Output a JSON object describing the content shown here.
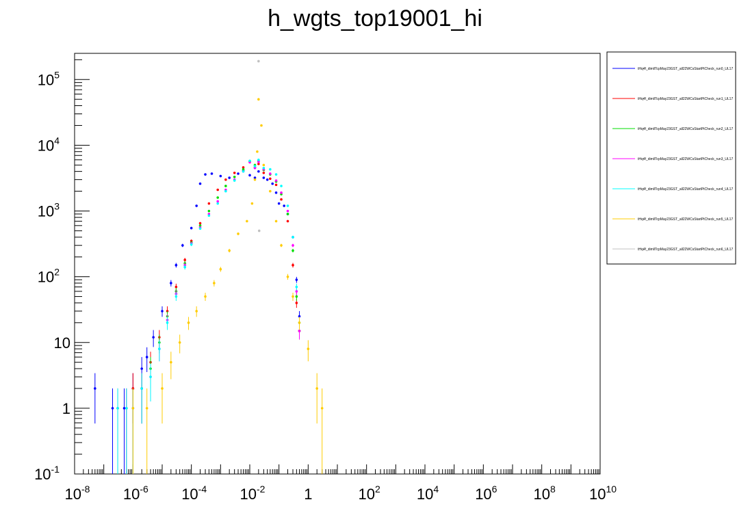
{
  "chart_data": {
    "type": "scatter",
    "title": "h_wgts_top19001_hi",
    "xlabel": "",
    "ylabel": "",
    "x_scale": "log",
    "y_scale": "log",
    "xlim": [
      1e-08,
      10000000000.0
    ],
    "ylim": [
      0.1,
      250000
    ],
    "grid": false,
    "legend_position": "top-right",
    "x_tick_labels": [
      {
        "value": 1e-08,
        "base": "10",
        "exp": "-8"
      },
      {
        "value": 1e-06,
        "base": "10",
        "exp": "-6"
      },
      {
        "value": 0.0001,
        "base": "10",
        "exp": "-4"
      },
      {
        "value": 0.01,
        "base": "10",
        "exp": "-2"
      },
      {
        "value": 1,
        "base": "1",
        "exp": ""
      },
      {
        "value": 100,
        "base": "10",
        "exp": "2"
      },
      {
        "value": 10000,
        "base": "10",
        "exp": "4"
      },
      {
        "value": 1000000,
        "base": "10",
        "exp": "6"
      },
      {
        "value": 100000000,
        "base": "10",
        "exp": "8"
      },
      {
        "value": 10000000000,
        "base": "10",
        "exp": "10"
      }
    ],
    "y_tick_labels": [
      {
        "value": 0.1,
        "base": "10",
        "exp": "-1"
      },
      {
        "value": 1,
        "base": "1",
        "exp": ""
      },
      {
        "value": 10,
        "base": "10",
        "exp": ""
      },
      {
        "value": 100,
        "base": "10",
        "exp": "2"
      },
      {
        "value": 1000,
        "base": "10",
        "exp": "3"
      },
      {
        "value": 10000,
        "base": "10",
        "exp": "4"
      },
      {
        "value": 100000,
        "base": "10",
        "exp": "5"
      }
    ],
    "series": [
      {
        "name": "tHq4f_dimllTcpMay23GST_all22WCsStartPtCheck_run0_UL17",
        "color": "#0000ff",
        "x": [
          5e-08,
          2e-07,
          5e-07,
          1e-06,
          2e-06,
          3e-06,
          5e-06,
          1e-05,
          2e-05,
          3e-05,
          5e-05,
          0.0001,
          0.00015,
          0.0002,
          0.0003,
          0.0005,
          0.001,
          0.002,
          0.004,
          0.006,
          0.01,
          0.015,
          0.02,
          0.03,
          0.04,
          0.06,
          0.08,
          0.1,
          0.15,
          0.2,
          0.3,
          0.4,
          0.5
        ],
        "y": [
          2,
          1,
          1,
          2,
          4,
          6,
          12,
          30,
          80,
          150,
          300,
          550,
          1200,
          2600,
          3600,
          3700,
          3400,
          3200,
          3700,
          4100,
          3500,
          3200,
          4000,
          3200,
          3000,
          2600,
          1900,
          1300,
          1200,
          900,
          400,
          90,
          25
        ]
      },
      {
        "name": "tHq4f_dimllTcpMay23GST_all22WCsStartPtCheck_run1_UL17",
        "color": "#ff0000",
        "x": [
          3e-07,
          6e-07,
          1e-06,
          2e-06,
          4e-06,
          8e-06,
          1.5e-05,
          3e-05,
          6e-05,
          0.0001,
          0.0002,
          0.0004,
          0.0008,
          0.0015,
          0.003,
          0.006,
          0.01,
          0.015,
          0.02,
          0.03,
          0.05,
          0.08,
          0.12,
          0.2,
          0.3,
          0.4,
          0.5
        ],
        "y": [
          1,
          1,
          2,
          2,
          5,
          12,
          30,
          70,
          180,
          350,
          650,
          1300,
          2100,
          3000,
          3800,
          4600,
          5600,
          4600,
          5200,
          3800,
          3100,
          2500,
          1500,
          700,
          150,
          40,
          15
        ]
      },
      {
        "name": "tHq4f_dimllTcpMay23GST_all22WCsStartPtCheck_run2_UL17",
        "color": "#00dd00",
        "x": [
          3e-07,
          6e-07,
          1e-06,
          2e-06,
          4e-06,
          8e-06,
          1.5e-05,
          3e-05,
          6e-05,
          0.0001,
          0.0002,
          0.0004,
          0.0008,
          0.0015,
          0.003,
          0.006,
          0.01,
          0.015,
          0.02,
          0.03,
          0.05,
          0.08,
          0.12,
          0.2,
          0.3,
          0.4,
          0.5
        ],
        "y": [
          1,
          1,
          1,
          2,
          4,
          10,
          25,
          60,
          160,
          330,
          600,
          1000,
          1600,
          2400,
          3300,
          4300,
          5700,
          5000,
          5800,
          4200,
          3600,
          2800,
          1800,
          900,
          250,
          50,
          15
        ]
      },
      {
        "name": "tHq4f_dimllTcpMay23GST_all22WCsStartPtCheck_run3_UL17",
        "color": "#ff00ff",
        "x": [
          3e-07,
          6e-07,
          1e-06,
          2e-06,
          4e-06,
          8e-06,
          1.5e-05,
          3e-05,
          6e-05,
          0.0001,
          0.0002,
          0.0004,
          0.0008,
          0.0015,
          0.003,
          0.006,
          0.01,
          0.015,
          0.02,
          0.03,
          0.05,
          0.08,
          0.12,
          0.2,
          0.3,
          0.4,
          0.5
        ],
        "y": [
          1,
          1,
          1,
          2,
          3,
          8,
          22,
          55,
          150,
          320,
          560,
          900,
          1400,
          2100,
          3000,
          4000,
          5500,
          4500,
          5600,
          4300,
          3700,
          2900,
          1900,
          1000,
          300,
          60,
          15
        ]
      },
      {
        "name": "tHq4f_dimllTcpMay23GST_all22WCsStartPtCheck_run4_UL17",
        "color": "#00ffff",
        "x": [
          3e-07,
          6e-07,
          1e-06,
          2e-06,
          4e-06,
          8e-06,
          1.5e-05,
          3e-05,
          6e-05,
          0.0001,
          0.0002,
          0.0004,
          0.0008,
          0.0015,
          0.003,
          0.006,
          0.01,
          0.015,
          0.02,
          0.03,
          0.05,
          0.08,
          0.12,
          0.2,
          0.3,
          0.4,
          0.5
        ],
        "y": [
          1,
          1,
          1,
          2,
          3,
          8,
          20,
          50,
          140,
          310,
          540,
          850,
          1300,
          2000,
          2900,
          4000,
          5800,
          4800,
          6000,
          4500,
          4300,
          3600,
          2400,
          1200,
          400,
          70,
          20
        ]
      },
      {
        "name": "tHq4f_dimllTcpMay23GST_all22WCsStartPtCheck_run5_UL17",
        "color": "#ffcc00",
        "x": [
          1e-06,
          3e-06,
          1e-05,
          2e-05,
          4e-05,
          8e-05,
          0.00015,
          0.0003,
          0.0006,
          0.001,
          0.002,
          0.004,
          0.008,
          0.012,
          0.015,
          0.018,
          0.02,
          0.025,
          0.03,
          0.05,
          0.08,
          0.12,
          0.2,
          0.3,
          0.5,
          1,
          2,
          3
        ],
        "y": [
          1,
          1,
          2,
          5,
          10,
          20,
          30,
          50,
          80,
          130,
          250,
          450,
          700,
          1300,
          3000,
          8000,
          50000,
          20000,
          5000,
          2000,
          700,
          300,
          100,
          50,
          20,
          8,
          2,
          1
        ]
      },
      {
        "name": "tHq4f_dimllTcpMay23GST_all22WCsStartPtCheck_run6_UL17",
        "color": "#c0c0c0",
        "x": [
          0.02,
          0.021
        ],
        "y": [
          190000,
          500
        ]
      }
    ]
  }
}
